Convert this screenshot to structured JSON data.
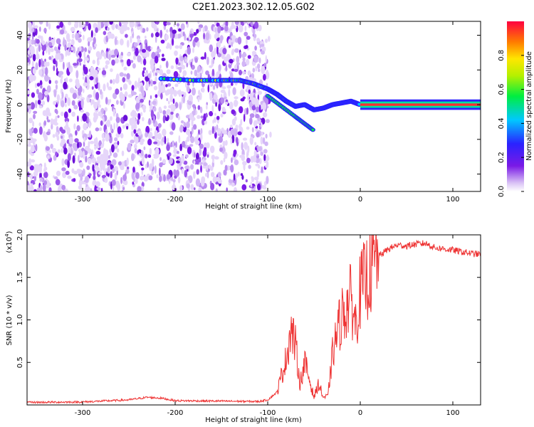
{
  "figure": {
    "title": "C2E1.2023.302.12.05.G02"
  },
  "chart_data": [
    {
      "type": "heatmap",
      "title": "C2E1.2023.302.12.05.G02",
      "xlabel": "Height of straight line (km)",
      "ylabel": "Frequency (Hz)",
      "xlim": [
        -360,
        130
      ],
      "ylim": [
        -50,
        48
      ],
      "x_ticks": [
        -300,
        -200,
        -100,
        0,
        100
      ],
      "y_ticks": [
        -40,
        -20,
        0,
        20,
        40
      ],
      "x_tick_labels": [
        "-300",
        "-200",
        "-100",
        "0",
        "100"
      ],
      "y_tick_labels": [
        "-40",
        "-20",
        "0",
        "20",
        "40"
      ],
      "colorbar": {
        "label": "Normalized spectral amplitude",
        "range": [
          0,
          1
        ],
        "ticks": [
          0.0,
          0.2,
          0.4,
          0.6,
          0.8
        ],
        "tick_labels": [
          "0.0",
          "0.2",
          "0.4",
          "0.6",
          "0.8"
        ],
        "colormap": "rainbow"
      },
      "noise_region_x": [
        -360,
        -100
      ],
      "signal_track": {
        "x": [
          -215,
          -180,
          -150,
          -130,
          -115,
          -100,
          -90,
          -80,
          -70,
          -60,
          -50,
          -40,
          -30,
          -20,
          -10,
          0,
          50,
          100,
          130
        ],
        "y": [
          15,
          14,
          14,
          14,
          12,
          9,
          6,
          2,
          -1,
          0,
          -3,
          -2,
          0,
          1,
          2,
          0,
          0,
          0,
          0
        ],
        "branch_x": [
          -100,
          -85,
          -70,
          -60,
          -50
        ],
        "branch_y": [
          5,
          -1,
          -7,
          -11,
          -15
        ]
      },
      "grid": false
    },
    {
      "type": "line",
      "xlabel": "Height of straight line (km)",
      "ylabel": "SNR (10 * v/v)",
      "y_multiplier_label": "(x10",
      "y_multiplier_exp": "4",
      "y_multiplier_close": ")",
      "xlim": [
        -360,
        130
      ],
      "ylim": [
        0,
        20000
      ],
      "x_ticks": [
        -300,
        -200,
        -100,
        0,
        100
      ],
      "x_tick_labels": [
        "-300",
        "-200",
        "-100",
        "0",
        "100"
      ],
      "y_ticks": [
        5000,
        10000,
        15000,
        20000
      ],
      "y_tick_labels": [
        "0.5",
        "1.0",
        "1.5",
        "2.0"
      ],
      "series": [
        {
          "color": "#ee3333",
          "x": [
            -360,
            -300,
            -250,
            -230,
            -215,
            -200,
            -150,
            -110,
            -100,
            -90,
            -80,
            -75,
            -70,
            -65,
            -60,
            -55,
            -50,
            -45,
            -40,
            -35,
            -30,
            -25,
            -20,
            -15,
            -10,
            -5,
            0,
            10,
            20,
            30,
            40,
            50,
            60,
            70,
            75,
            80,
            100,
            120,
            130
          ],
          "y": [
            300,
            350,
            600,
            900,
            800,
            500,
            450,
            400,
            600,
            1500,
            5500,
            9000,
            7000,
            2500,
            5000,
            3000,
            900,
            2500,
            900,
            1000,
            6000,
            8500,
            10500,
            11500,
            12500,
            9500,
            13500,
            15500,
            17500,
            18300,
            18800,
            18700,
            18900,
            19000,
            18800,
            18500,
            18200,
            17800,
            17700
          ]
        }
      ],
      "grid": false
    }
  ]
}
